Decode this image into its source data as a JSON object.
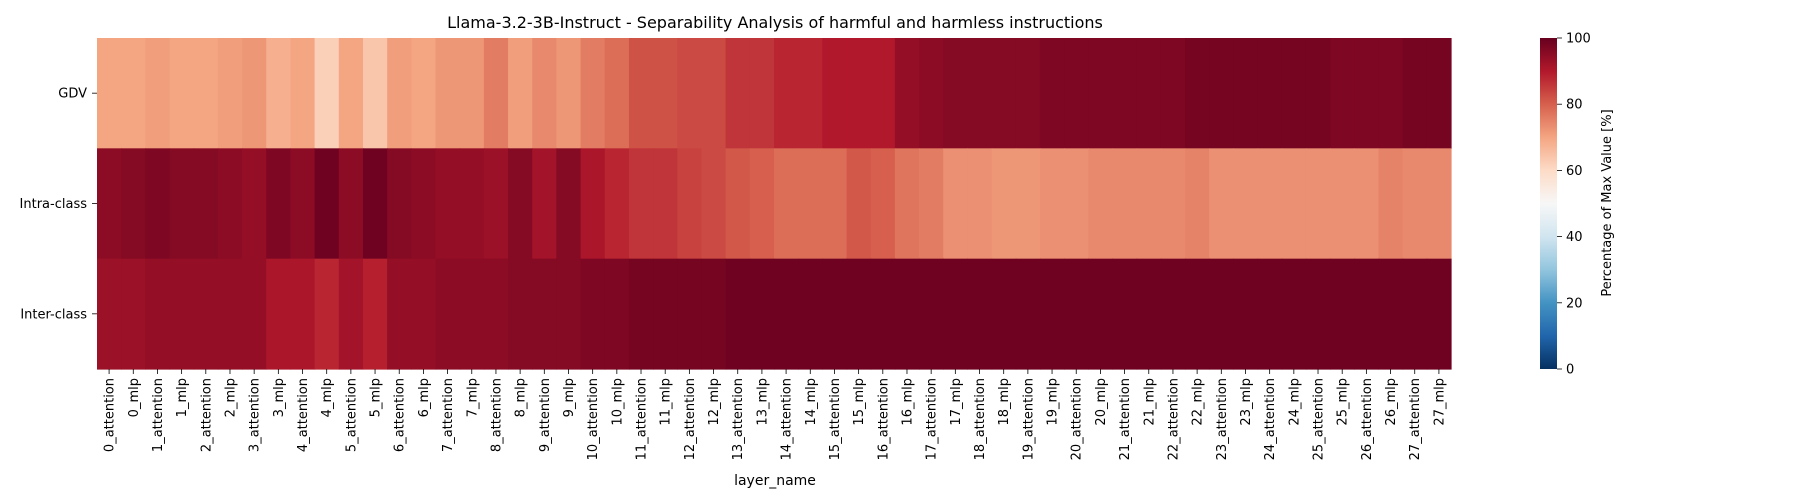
{
  "chart_data": {
    "type": "heatmap",
    "title": "Llama-3.2-3B-Instruct - Separability Analysis of harmful and harmless instructions",
    "xlabel": "layer_name",
    "ylabel": "",
    "colorbar_label": "Percentage of Max Value [%]",
    "colormap": "RdBu_r",
    "vmin": 0,
    "vmax": 100,
    "colorbar_ticks": [
      "0",
      "20",
      "40",
      "60",
      "80",
      "100"
    ],
    "rows": [
      "GDV",
      "Intra-class",
      "Inter-class"
    ],
    "columns": [
      "0_attention",
      "0_mlp",
      "1_attention",
      "1_mlp",
      "2_attention",
      "2_mlp",
      "3_attention",
      "3_mlp",
      "4_attention",
      "4_mlp",
      "5_attention",
      "5_mlp",
      "6_attention",
      "6_mlp",
      "7_attention",
      "7_mlp",
      "8_attention",
      "8_mlp",
      "9_attention",
      "9_mlp",
      "10_attention",
      "10_mlp",
      "11_attention",
      "11_mlp",
      "12_attention",
      "12_mlp",
      "13_attention",
      "13_mlp",
      "14_attention",
      "14_mlp",
      "15_attention",
      "15_mlp",
      "16_attention",
      "16_mlp",
      "17_attention",
      "17_mlp",
      "18_attention",
      "18_mlp",
      "19_attention",
      "19_mlp",
      "20_attention",
      "20_mlp",
      "21_attention",
      "21_mlp",
      "22_attention",
      "22_mlp",
      "23_attention",
      "23_mlp",
      "24_attention",
      "24_mlp",
      "25_attention",
      "25_mlp",
      "26_attention",
      "26_mlp",
      "27_attention",
      "27_mlp"
    ],
    "values": [
      [
        70,
        70,
        71,
        70,
        70,
        71,
        72,
        68,
        70,
        62,
        70,
        64,
        71,
        70,
        72,
        72,
        76,
        71,
        74,
        72,
        76,
        78,
        82,
        82,
        83,
        83,
        86,
        86,
        88,
        88,
        90,
        90,
        90,
        94,
        95,
        96,
        96,
        96,
        96,
        97,
        97,
        97,
        97,
        97,
        97,
        98,
        98,
        98,
        98,
        98,
        98,
        97,
        97,
        97,
        98,
        98
      ],
      [
        95,
        96,
        97,
        96,
        96,
        95,
        94,
        97,
        95,
        99,
        95,
        99,
        96,
        95,
        94,
        94,
        93,
        96,
        92,
        96,
        91,
        88,
        86,
        86,
        84,
        83,
        81,
        80,
        78,
        78,
        78,
        81,
        80,
        77,
        76,
        73,
        73,
        72,
        72,
        73,
        73,
        74,
        74,
        74,
        74,
        75,
        73,
        73,
        73,
        73,
        73,
        73,
        73,
        75,
        74,
        74
      ],
      [
        93,
        93,
        94,
        94,
        94,
        94,
        94,
        91,
        91,
        88,
        92,
        89,
        94,
        94,
        95,
        95,
        95,
        96,
        96,
        96,
        97,
        97,
        98,
        98,
        98,
        98,
        99,
        99,
        99,
        99,
        99,
        99,
        99,
        99,
        99,
        99,
        99,
        99,
        99,
        99,
        99,
        99,
        99,
        99,
        99,
        99,
        99,
        99,
        99,
        99,
        99,
        99,
        99,
        99,
        99,
        99
      ]
    ],
    "grid": false,
    "legend": "colorbar-right"
  }
}
